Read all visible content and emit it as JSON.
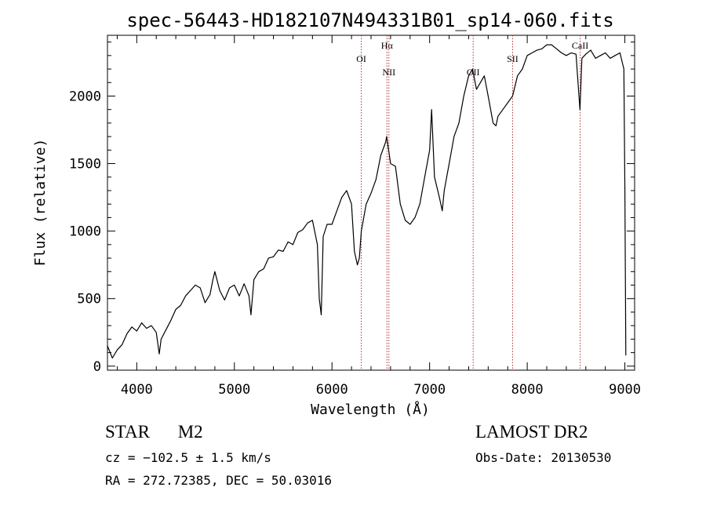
{
  "chart_data": {
    "type": "line",
    "title": "spec-56443-HD182107N494331B01_sp14-060.fits",
    "xlabel": "Wavelength (Å)",
    "ylabel": "Flux (relative)",
    "xlim": [
      3700,
      9100
    ],
    "ylim": [
      -30,
      2450
    ],
    "xticks": [
      4000,
      5000,
      6000,
      7000,
      8000,
      9000
    ],
    "yticks": [
      0,
      500,
      1000,
      1500,
      2000
    ],
    "grid": false,
    "series": [
      {
        "color": "#000000",
        "x": [
          3700,
          3750,
          3800,
          3850,
          3900,
          3950,
          4000,
          4050,
          4100,
          4150,
          4200,
          4230,
          4250,
          4300,
          4350,
          4400,
          4450,
          4500,
          4550,
          4600,
          4650,
          4700,
          4750,
          4780,
          4800,
          4850,
          4900,
          4950,
          5000,
          5050,
          5100,
          5150,
          5170,
          5200,
          5250,
          5300,
          5350,
          5400,
          5450,
          5500,
          5550,
          5600,
          5650,
          5700,
          5750,
          5800,
          5850,
          5870,
          5890,
          5910,
          5950,
          6000,
          6050,
          6100,
          6150,
          6200,
          6230,
          6260,
          6280,
          6300,
          6350,
          6400,
          6450,
          6500,
          6550,
          6560,
          6580,
          6600,
          6650,
          6700,
          6750,
          6800,
          6850,
          6900,
          6950,
          7000,
          7020,
          7050,
          7100,
          7130,
          7150,
          7200,
          7250,
          7300,
          7350,
          7400,
          7440,
          7480,
          7520,
          7560,
          7600,
          7650,
          7680,
          7700,
          7750,
          7800,
          7850,
          7900,
          7950,
          8000,
          8050,
          8100,
          8150,
          8200,
          8250,
          8300,
          8350,
          8400,
          8450,
          8500,
          8540,
          8560,
          8600,
          8650,
          8700,
          8750,
          8800,
          8850,
          8900,
          8950,
          8990,
          9000,
          9010
        ],
        "values": [
          150,
          60,
          120,
          160,
          240,
          290,
          260,
          320,
          280,
          300,
          250,
          90,
          200,
          270,
          340,
          420,
          450,
          520,
          560,
          600,
          580,
          470,
          530,
          640,
          700,
          560,
          490,
          580,
          600,
          520,
          610,
          520,
          380,
          640,
          700,
          720,
          800,
          810,
          860,
          850,
          920,
          900,
          990,
          1010,
          1060,
          1080,
          900,
          500,
          380,
          960,
          1050,
          1050,
          1150,
          1250,
          1300,
          1200,
          850,
          750,
          800,
          1000,
          1200,
          1280,
          1380,
          1560,
          1660,
          1700,
          1600,
          1500,
          1480,
          1200,
          1080,
          1050,
          1100,
          1200,
          1400,
          1600,
          1900,
          1400,
          1250,
          1150,
          1300,
          1500,
          1700,
          1800,
          2000,
          2150,
          2200,
          2050,
          2100,
          2150,
          2000,
          1800,
          1780,
          1850,
          1900,
          1950,
          2000,
          2150,
          2200,
          2300,
          2320,
          2340,
          2350,
          2380,
          2380,
          2350,
          2320,
          2300,
          2320,
          2310,
          1900,
          2280,
          2310,
          2340,
          2280,
          2300,
          2320,
          2280,
          2300,
          2320,
          2200,
          1300,
          80
        ]
      }
    ],
    "lines": [
      {
        "label": "OI",
        "x": 6300,
        "label_row": 2
      },
      {
        "label": "Hα",
        "x": 6563,
        "label_row": 1
      },
      {
        "label": "NII",
        "x": 6583,
        "label_row": 3
      },
      {
        "label": "OII",
        "x": 7446,
        "label_row": 3
      },
      {
        "label": "SII",
        "x": 7850,
        "label_row": 2
      },
      {
        "label": "CaII",
        "x": 8542,
        "label_row": 1
      }
    ],
    "line_color": "#b03030"
  },
  "info": {
    "class_label": "STAR",
    "subclass": "M2",
    "cz": "cz = −102.5 ± 1.5 km/s",
    "radec": "RA = 272.72385, DEC =  50.03016",
    "survey": "LAMOST DR2",
    "obs_date": "Obs-Date: 20130530"
  }
}
